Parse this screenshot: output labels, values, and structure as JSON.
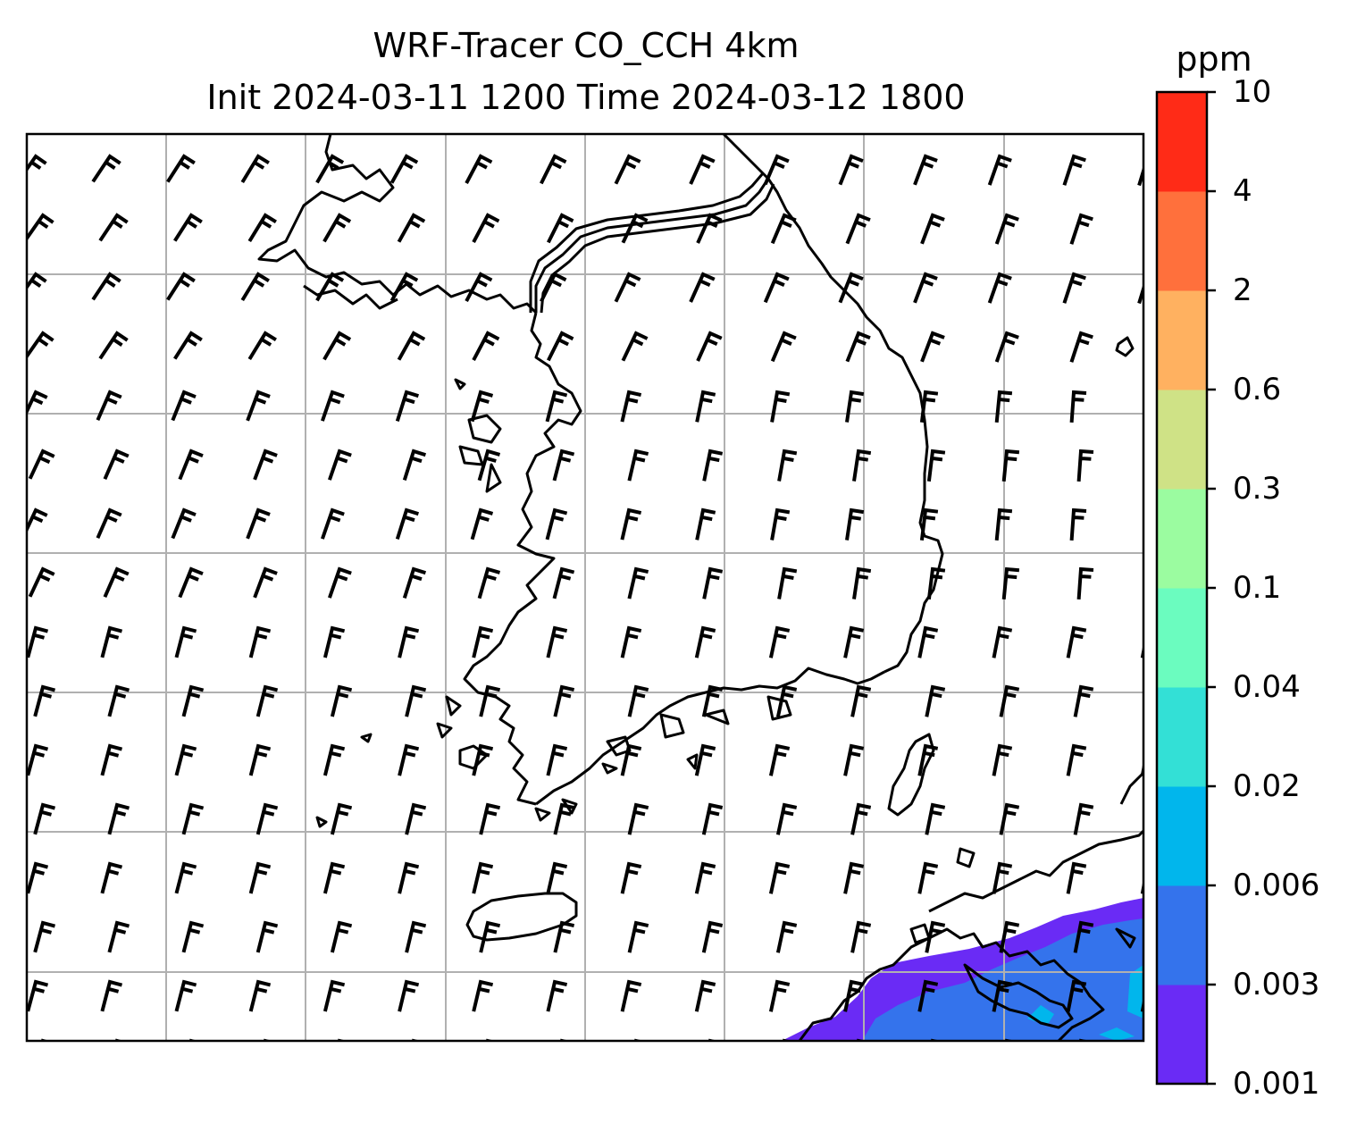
{
  "title": {
    "line1": "WRF-Tracer CO_CCH 4km",
    "line2": "Init 2024-03-11 1200 Time 2024-03-12 1800"
  },
  "colorbar": {
    "unit": "ppm",
    "levels": [
      "0.001",
      "0.003",
      "0.006",
      "0.02",
      "0.04",
      "0.1",
      "0.3",
      "0.6",
      "2",
      "4",
      "10"
    ],
    "colors": [
      "#6a2bf5",
      "#3473ec",
      "#01b6ec",
      "#33e0d6",
      "#6bfcbf",
      "#9bfca0",
      "#cfe286",
      "#ffb160",
      "#ff703c",
      "#ff2b17"
    ]
  },
  "map": {
    "region": "Korean Peninsula / Yellow Sea / southern Japan",
    "gridlines": true,
    "gridline_color": "#b0b0b0",
    "coastline_color": "#000000",
    "wind_barbs": true,
    "tracer_plume_location": "bottom-right (Kyushu / southern Japan)",
    "plume_colors": [
      "#6a2bf5",
      "#3473ec",
      "#01b6ec"
    ]
  }
}
